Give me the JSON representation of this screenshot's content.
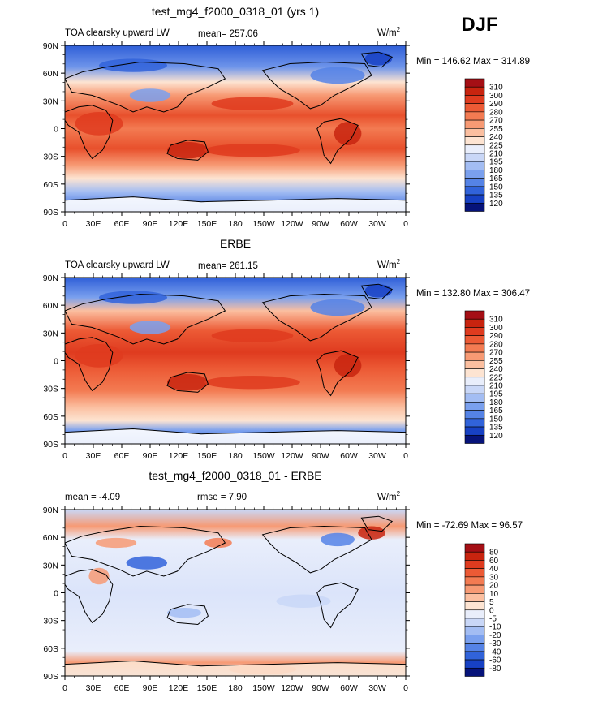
{
  "season": "DJF",
  "lon_ticks": [
    "0",
    "30E",
    "60E",
    "90E",
    "120E",
    "150E",
    "180",
    "150W",
    "120W",
    "90W",
    "60W",
    "30W",
    "0"
  ],
  "lat_ticks": [
    "90N",
    "60N",
    "30N",
    "0",
    "30S",
    "60S",
    "90S"
  ],
  "panels": [
    {
      "title": "test_mg4_f2000_0318_01 (yrs 1)",
      "left_label": "TOA clearsky upward LW",
      "mean_label": "mean=",
      "mean_value": "257.06",
      "units": "W/m",
      "units_sup": "2",
      "minmax": "Min = 146.62 Max = 314.89",
      "colorbar_labels": [
        "310",
        "300",
        "290",
        "280",
        "270",
        "255",
        "240",
        "225",
        "210",
        "195",
        "180",
        "165",
        "150",
        "135",
        "120"
      ],
      "colorbar_colors": [
        "#a50f15",
        "#c8240f",
        "#df3b1f",
        "#ec5a35",
        "#f37b52",
        "#f79a74",
        "#fbbfa0",
        "#fde4d2",
        "#e9eefb",
        "#c9d7f7",
        "#a3bdf3",
        "#7aa0ee",
        "#5583e6",
        "#3163da",
        "#1741c4",
        "#06137a"
      ],
      "type": "abs",
      "dataset": "model"
    },
    {
      "title": "ERBE",
      "left_label": "TOA clearsky upward LW",
      "mean_label": "mean=",
      "mean_value": "261.15",
      "units": "W/m",
      "units_sup": "2",
      "minmax": "Min = 132.80 Max = 306.47",
      "colorbar_labels": [
        "310",
        "300",
        "290",
        "280",
        "270",
        "255",
        "240",
        "225",
        "210",
        "195",
        "180",
        "165",
        "150",
        "135",
        "120"
      ],
      "colorbar_colors": [
        "#a50f15",
        "#c8240f",
        "#df3b1f",
        "#ec5a35",
        "#f37b52",
        "#f79a74",
        "#fbbfa0",
        "#fde4d2",
        "#e9eefb",
        "#c9d7f7",
        "#a3bdf3",
        "#7aa0ee",
        "#5583e6",
        "#3163da",
        "#1741c4",
        "#06137a"
      ],
      "type": "abs",
      "dataset": "obs"
    },
    {
      "title": "test_mg4_f2000_0318_01 - ERBE",
      "left_label": "mean =   -4.09",
      "rmse_label": "rmse =    7.90",
      "units": "W/m",
      "units_sup": "2",
      "minmax": "Min = -72.69 Max =  96.57",
      "colorbar_labels": [
        "80",
        "60",
        "40",
        "30",
        "20",
        "10",
        "5",
        "0",
        "-5",
        "-10",
        "-20",
        "-30",
        "-40",
        "-60",
        "-80"
      ],
      "colorbar_colors": [
        "#a50f15",
        "#c8240f",
        "#df3b1f",
        "#ec5a35",
        "#f37b52",
        "#f79a74",
        "#fbbfa0",
        "#fde4d2",
        "#e9eefb",
        "#c9d7f7",
        "#a3bdf3",
        "#7aa0ee",
        "#5583e6",
        "#3163da",
        "#1741c4",
        "#06137a"
      ],
      "type": "diff",
      "dataset": "diff"
    }
  ]
}
